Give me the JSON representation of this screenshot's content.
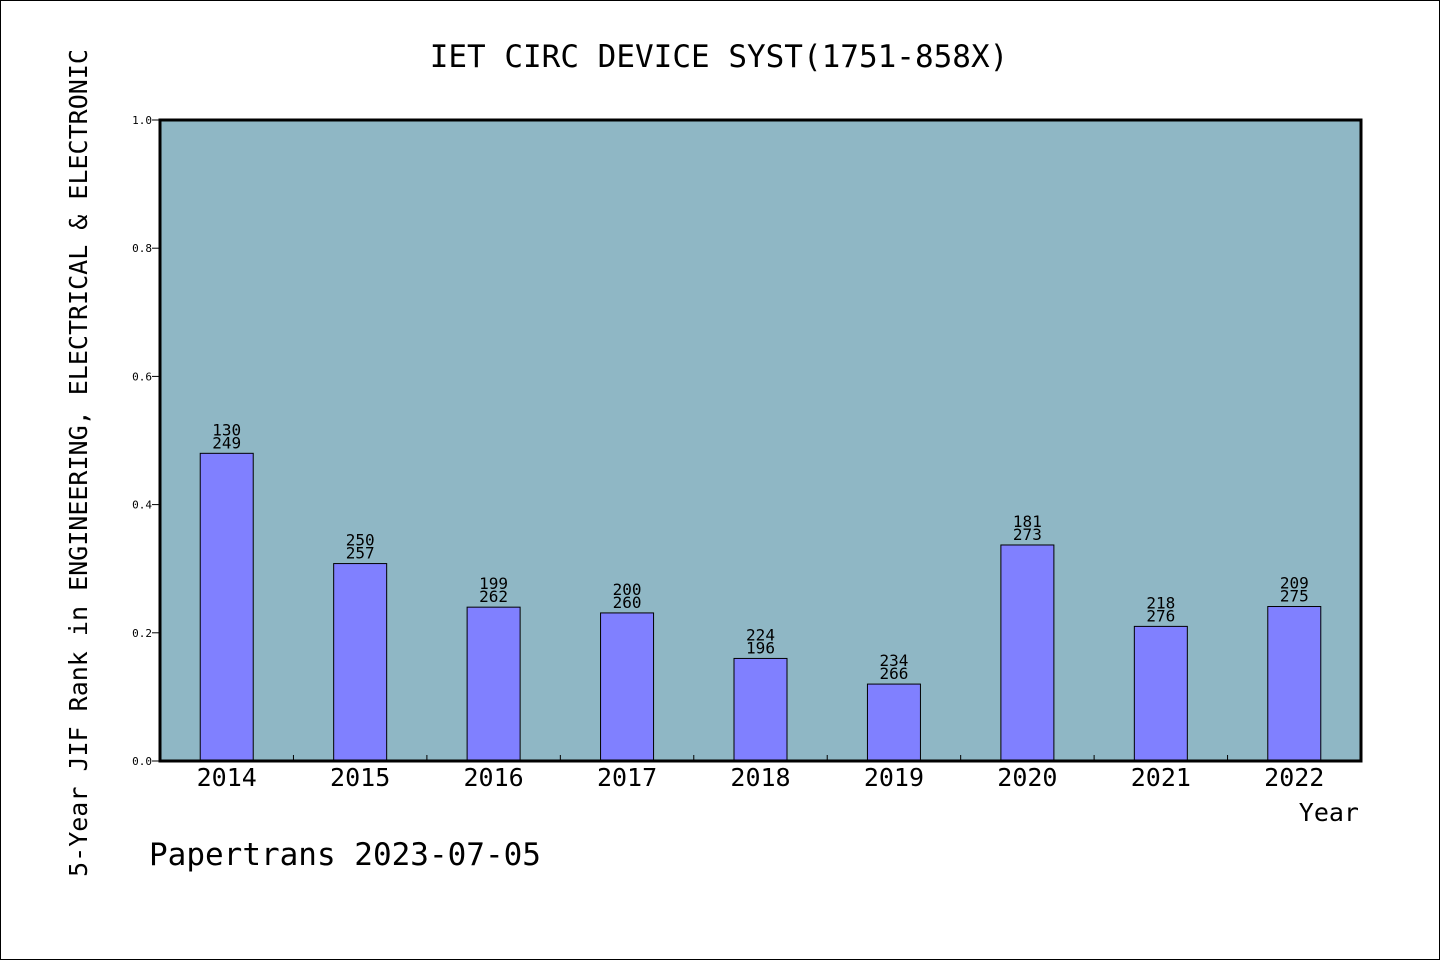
{
  "chart_data": {
    "type": "bar",
    "title": "IET CIRC DEVICE SYST(1751-858X)",
    "xlabel": "Year",
    "ylabel": "5-Year JIF Rank in ENGINEERING, ELECTRICAL & ELECTRONIC",
    "categories": [
      "2014",
      "2015",
      "2016",
      "2017",
      "2018",
      "2019",
      "2020",
      "2021",
      "2022"
    ],
    "values": [
      0.48,
      0.308,
      0.24,
      0.231,
      0.16,
      0.12,
      0.337,
      0.21,
      0.241
    ],
    "label_top": [
      "130",
      "250",
      "199",
      "200",
      "224",
      "234",
      "181",
      "218",
      "209"
    ],
    "label_bottom": [
      "249",
      "257",
      "262",
      "260",
      "196",
      "266",
      "273",
      "276",
      "275"
    ],
    "ylim": [
      0,
      1.0
    ],
    "yticks": [
      "0.0",
      "0.2",
      "0.4",
      "0.6",
      "0.8",
      "1.0"
    ],
    "grid": false,
    "plot_background": "#8fb7c5",
    "bar_color": "#8080ff"
  },
  "footer": "Papertrans 2023-07-05"
}
